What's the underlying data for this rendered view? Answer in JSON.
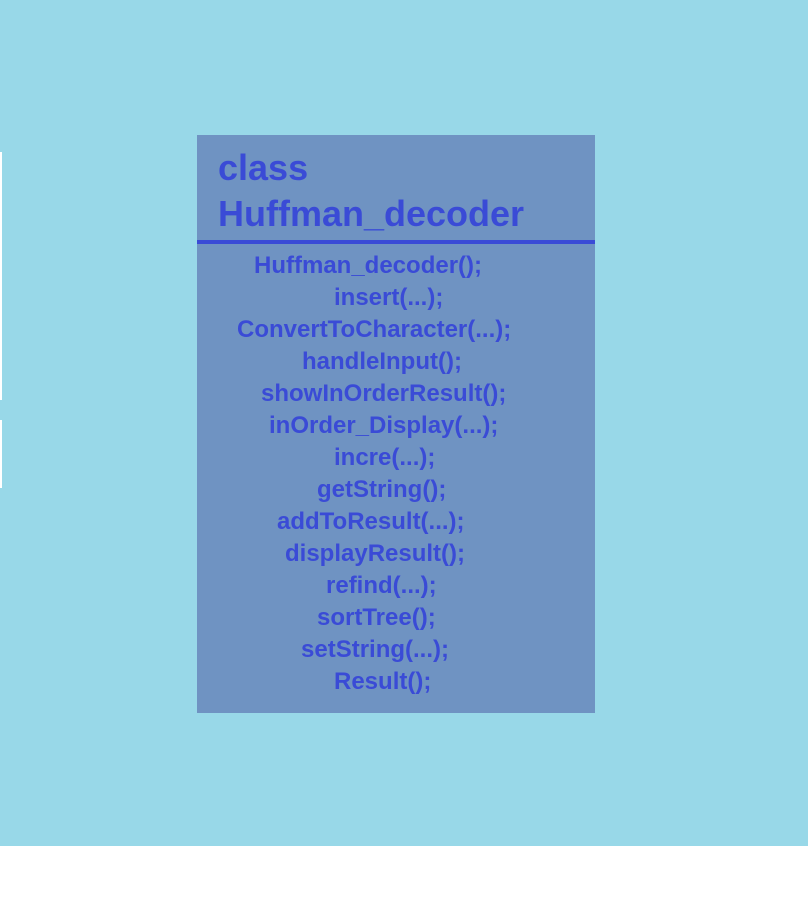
{
  "diagram": {
    "class_title": "class\nHuffman_decoder",
    "methods": [
      "Huffman_decoder();",
      "insert(...);",
      "ConvertToCharacter(...);",
      "handleInput();",
      "showInOrderResult();",
      "inOrder_Display(...);",
      "incre(...);",
      "getString();",
      "addToResult(...);",
      "displayResult();",
      "refind(...);",
      "sortTree();",
      "setString(...);",
      "Result();"
    ]
  },
  "colors": {
    "canvas_background": "#98d8e8",
    "box_fill": "#6f93c2",
    "text": "#3a4bd6",
    "divider": "#3a4bd6",
    "page_background": "#ffffff"
  }
}
